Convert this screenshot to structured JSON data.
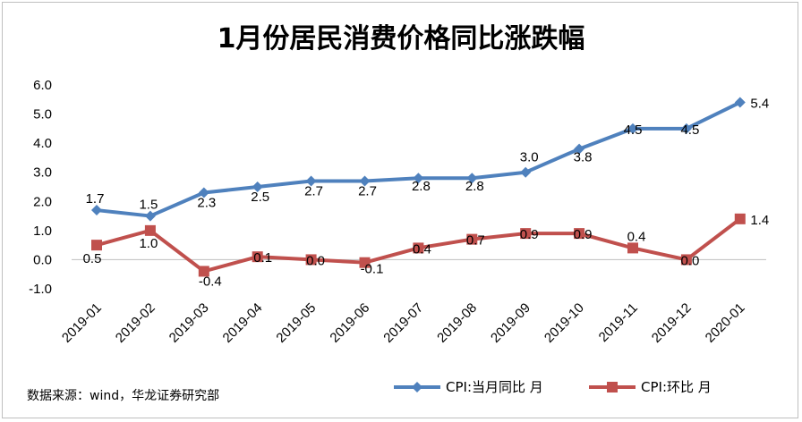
{
  "title": "1月份居民消费价格同比涨跌幅",
  "source": "数据来源：wind，华龙证券研究部",
  "chart_data": {
    "type": "line",
    "title": "1月份居民消费价格同比涨跌幅",
    "categories": [
      "2019-01",
      "2019-02",
      "2019-03",
      "2019-04",
      "2019-05",
      "2019-06",
      "2019-07",
      "2019-08",
      "2019-09",
      "2019-10",
      "2019-11",
      "2019-12",
      "2020-01"
    ],
    "yticks": [
      "-1.0",
      "0.0",
      "1.0",
      "2.0",
      "3.0",
      "4.0",
      "5.0",
      "6.0"
    ],
    "ylim": [
      -1,
      6
    ],
    "grid": false,
    "legend": "bottom",
    "series": [
      {
        "name": "CPI:当月同比 月",
        "color": "#4f81bd",
        "marker": "diamond",
        "values": [
          1.7,
          1.5,
          2.3,
          2.5,
          2.7,
          2.7,
          2.8,
          2.8,
          3.0,
          3.8,
          4.5,
          4.5,
          5.4
        ],
        "labels": [
          "1.7",
          "1.5",
          "2.3",
          "2.5",
          "2.7",
          "2.7",
          "2.8",
          "2.8",
          "3.0",
          "3.8",
          "4.5",
          "4.5",
          "5.4"
        ]
      },
      {
        "name": "CPI:环比 月",
        "color": "#c0504d",
        "marker": "square",
        "values": [
          0.5,
          1.0,
          -0.4,
          0.1,
          0.0,
          -0.1,
          0.4,
          0.7,
          0.9,
          0.9,
          0.4,
          0.0,
          1.4
        ],
        "labels": [
          "0.5",
          "1.0",
          "-0.4",
          "0.1",
          "0.0",
          "-0.1",
          "0.4",
          "0.7",
          "0.9",
          "0.9",
          "0.4",
          "0.0",
          "1.4"
        ]
      }
    ]
  }
}
